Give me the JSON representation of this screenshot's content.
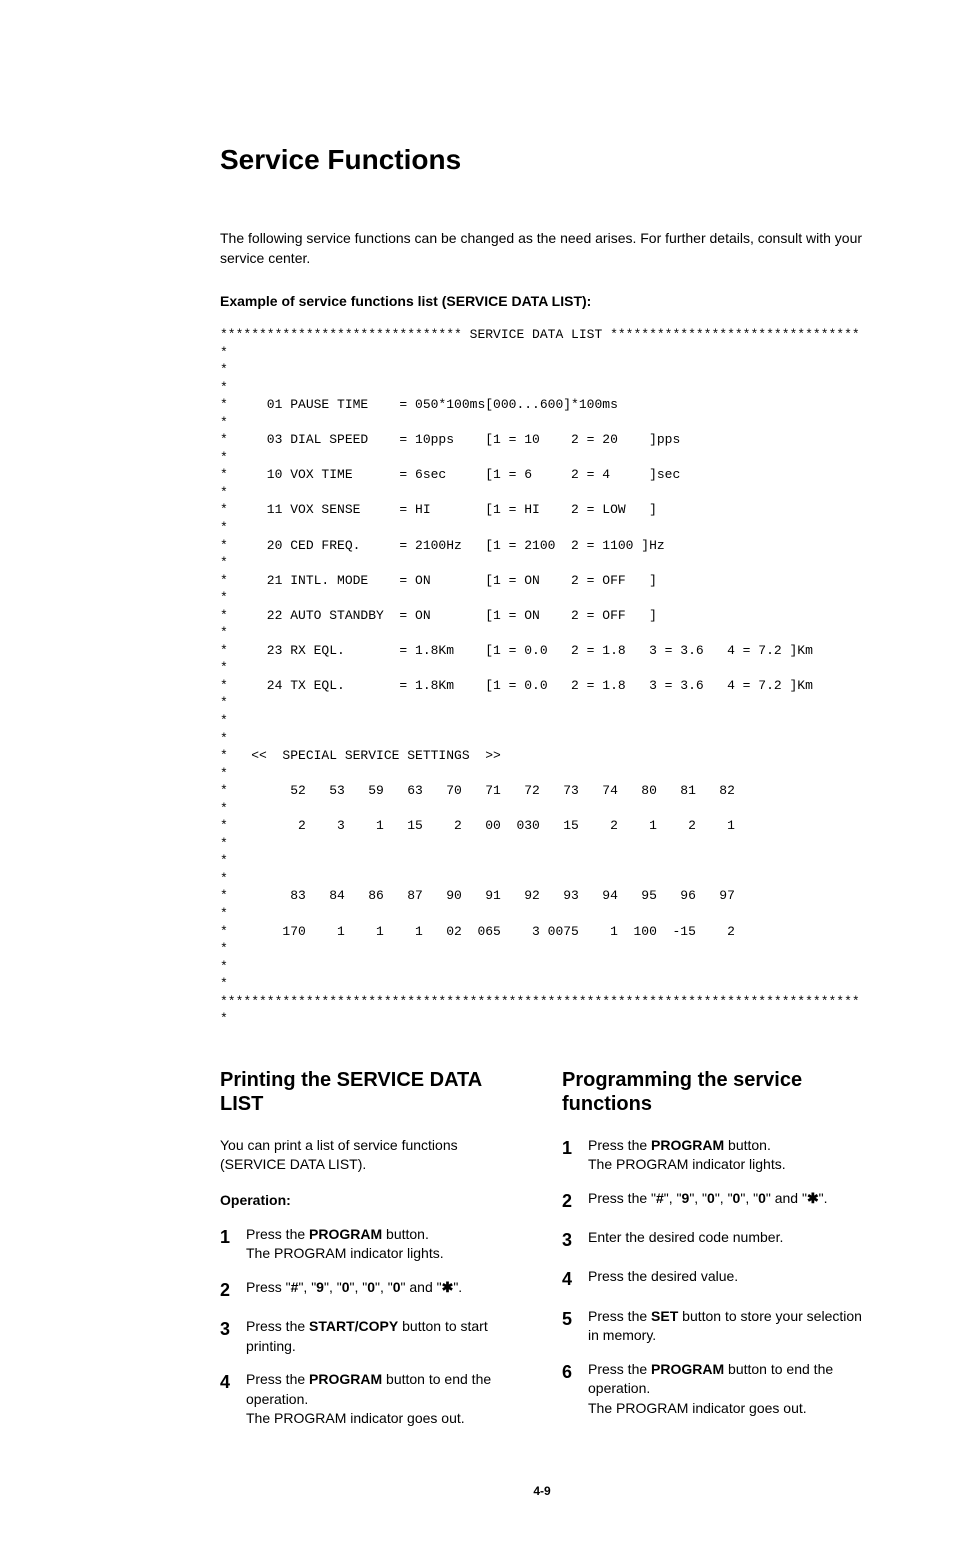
{
  "title": "Service Functions",
  "intro": "The following service functions can be changed as the need arises. For further details, consult with your service center.",
  "exampleLabel": "Example of service functions list (SERVICE DATA LIST):",
  "dataList": {
    "headerStars": "******************************* SERVICE DATA LIST *********************************",
    "lines": [
      "*                                                                                 *",
      "*     01 PAUSE TIME    = 050*100ms[000...600]*100ms                               *",
      "*     03 DIAL SPEED    = 10pps    [1 = 10    2 = 20    ]pps                       *",
      "*     10 VOX TIME      = 6sec     [1 = 6     2 = 4     ]sec                       *",
      "*     11 VOX SENSE     = HI       [1 = HI    2 = LOW   ]                          *",
      "*     20 CED FREQ.     = 2100Hz   [1 = 2100  2 = 1100 ]Hz                         *",
      "*     21 INTL. MODE    = ON       [1 = ON    2 = OFF   ]                          *",
      "*     22 AUTO STANDBY  = ON       [1 = ON    2 = OFF   ]                          *",
      "*     23 RX EQL.       = 1.8Km    [1 = 0.0   2 = 1.8   3 = 3.6   4 = 7.2 ]Km      *",
      "*     24 TX EQL.       = 1.8Km    [1 = 0.0   2 = 1.8   3 = 3.6   4 = 7.2 ]Km      *",
      "*                                                                                 *",
      "*   <<  SPECIAL SERVICE SETTINGS  >>                                              *",
      "*        52   53   59   63   70   71   72   73   74   80   81   82                *",
      "*         2    3    1   15    2   00  030   15    2    1    2    1                *",
      "*                                                                                 *",
      "*        83   84   86   87   90   91   92   93   94   95   96   97                *",
      "*       170    1    1    1   02  065    3 0075    1  100  -15    2                *",
      "*                                                                                 *"
    ],
    "footerStars": "***********************************************************************************"
  },
  "leftCol": {
    "heading": "Printing the SERVICE DATA LIST",
    "para": "You can print a list of service functions (SERVICE DATA LIST).",
    "opLabel": "Operation:",
    "steps": [
      "Press the <b>PROGRAM</b> button.<br>The PROGRAM indicator lights.",
      "Press \"<b>#</b>\", \"<b>9</b>\", \"<b>0</b>\", \"<b>0</b>\", \"<b>0</b>\" and \"<b>✱</b>\".",
      "Press the <b>START/COPY</b> button to start printing.",
      "Press the <b>PROGRAM</b> button to end the operation.<br>The PROGRAM indicator goes out."
    ]
  },
  "rightCol": {
    "heading": "Programming the service functions",
    "steps": [
      "Press the <b>PROGRAM</b> button.<br>The PROGRAM indicator lights.",
      "Press the \"<b>#</b>\", \"<b>9</b>\", \"<b>0</b>\", \"<b>0</b>\", \"<b>0</b>\" and \"<b>✱</b>\".",
      "Enter the desired code number.",
      "Press the desired value.",
      "Press the <b>SET</b> button to store your selection in memory.",
      "Press the <b>PROGRAM</b> button to end the operation.<br>The PROGRAM indicator goes out."
    ]
  },
  "pageNum": "4-9"
}
